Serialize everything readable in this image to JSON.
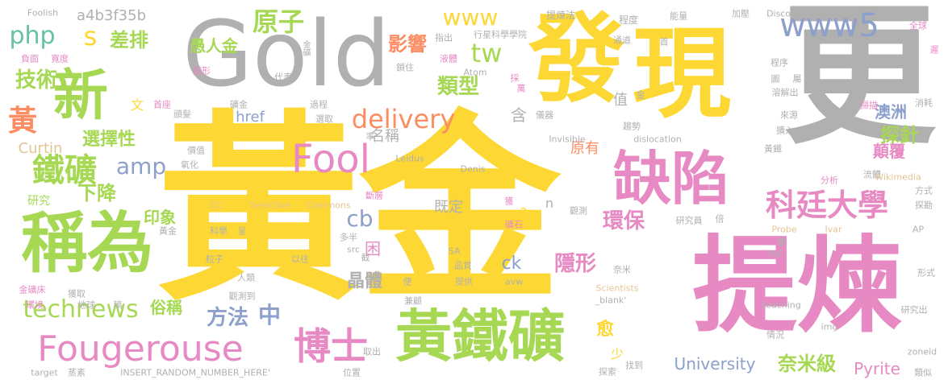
{
  "palette": {
    "yellow": "#fdd835",
    "gray": "#b0b0b0",
    "pink": "#e78ac3",
    "green": "#a6d854",
    "blue": "#8da0cb",
    "orange": "#fc8d62",
    "teal": "#66c2a5",
    "tan": "#e5c494"
  },
  "words": [
    {
      "id": "huangjin",
      "text": "黃金",
      "color": "#fdd835"
    },
    {
      "id": "tilian",
      "text": "提煉",
      "color": "#e78ac3"
    },
    {
      "id": "gold",
      "text": "Gold",
      "color": "#b0b0b0"
    },
    {
      "id": "fa",
      "text": "發",
      "color": "#fdd835"
    },
    {
      "id": "xian",
      "text": "現",
      "color": "#fdd835"
    },
    {
      "id": "geng",
      "text": "更",
      "color": "#b0b0b0"
    },
    {
      "id": "chengwei",
      "text": "稱為",
      "color": "#a6d854"
    },
    {
      "id": "huangtiekuang",
      "text": "黃鐵礦",
      "color": "#a6d854"
    },
    {
      "id": "quexian",
      "text": "缺陷",
      "color": "#e78ac3"
    },
    {
      "id": "fougerouse",
      "text": "Fougerouse",
      "color": "#e78ac3"
    },
    {
      "id": "xin",
      "text": "新",
      "color": "#a6d854"
    },
    {
      "id": "kedingdaxue",
      "text": "科廷大學",
      "color": "#e78ac3"
    },
    {
      "id": "boshi",
      "text": "博士",
      "color": "#e78ac3"
    },
    {
      "id": "tiekuang",
      "text": "鐵礦",
      "color": "#a6d854"
    },
    {
      "id": "fool",
      "text": "Fool",
      "color": "#e78ac3"
    },
    {
      "id": "www5",
      "text": "www5",
      "color": "#8da0cb"
    },
    {
      "id": "delivery",
      "text": "delivery",
      "color": "#fc8d62"
    },
    {
      "id": "technews",
      "text": "technews",
      "color": "#a6d854"
    },
    {
      "id": "yuanzi",
      "text": "原子",
      "color": "#a6d854"
    },
    {
      "id": "huang",
      "text": "黃",
      "color": "#fc8d62"
    },
    {
      "id": "jishu",
      "text": "技術",
      "color": "#a6d854"
    },
    {
      "id": "php",
      "text": "php",
      "color": "#66c2a5"
    },
    {
      "id": "s",
      "text": "s",
      "color": "#fdd835"
    },
    {
      "id": "chapai",
      "text": "差排",
      "color": "#a6d854"
    },
    {
      "id": "tw",
      "text": "tw",
      "color": "#a6d854"
    },
    {
      "id": "leixing",
      "text": "類型",
      "color": "#a6d854"
    },
    {
      "id": "yingxiang",
      "text": "影響",
      "color": "#fc8d62"
    },
    {
      "id": "www",
      "text": "www",
      "color": "#fdd835"
    },
    {
      "id": "amp",
      "text": "amp",
      "color": "#8da0cb"
    },
    {
      "id": "xiajiang",
      "text": "下降",
      "color": "#a6d854"
    },
    {
      "id": "xuanzexing",
      "text": "選擇性",
      "color": "#a6d854"
    },
    {
      "id": "tanzhen",
      "text": "探針",
      "color": "#a6d854"
    },
    {
      "id": "huanbao",
      "text": "環保",
      "color": "#e78ac3"
    },
    {
      "id": "yinxing",
      "text": "隱形",
      "color": "#e78ac3"
    },
    {
      "id": "jingti",
      "text": "晶體",
      "color": "#b0b0b0"
    },
    {
      "id": "cb",
      "text": "cb",
      "color": "#8da0cb"
    },
    {
      "id": "fangfa",
      "text": "方法",
      "color": "#8da0cb"
    },
    {
      "id": "zhong",
      "text": "中",
      "color": "#8da0cb"
    },
    {
      "id": "nami",
      "text": "奈米級",
      "color": "#a6d854"
    },
    {
      "id": "university",
      "text": "University",
      "color": "#8da0cb"
    },
    {
      "id": "pyrite",
      "text": "Pyrite",
      "color": "#e78ac3"
    },
    {
      "id": "aozhou",
      "text": "澳洲",
      "color": "#8da0cb"
    },
    {
      "id": "dianfu",
      "text": "顛覆",
      "color": "#e78ac3"
    },
    {
      "id": "yurenjin",
      "text": "愚人金",
      "color": "#a6d854"
    },
    {
      "id": "href",
      "text": "href",
      "color": "#8da0cb"
    },
    {
      "id": "curtin",
      "text": "Curtin",
      "color": "#e5c494"
    },
    {
      "id": "yinxiang",
      "text": "印象",
      "color": "#a6d854"
    },
    {
      "id": "suchen",
      "text": "俗稱",
      "color": "#a6d854"
    },
    {
      "id": "yu",
      "text": "愈",
      "color": "#fdd835"
    },
    {
      "id": "mingcheng",
      "text": "名稱",
      "color": "#b0b0b0"
    },
    {
      "id": "jiding",
      "text": "既定",
      "color": "#b0b0b0"
    },
    {
      "id": "ck",
      "text": "ck",
      "color": "#8da0cb"
    },
    {
      "id": "kun",
      "text": "困",
      "color": "#e78ac3"
    },
    {
      "id": "han",
      "text": "含",
      "color": "#b0b0b0"
    },
    {
      "id": "zhi",
      "text": "值",
      "color": "#b0b0b0"
    },
    {
      "id": "yuanyou",
      "text": "原有",
      "color": "#fc8d62"
    },
    {
      "id": "yanjiu",
      "text": "研究",
      "color": "#a6d854"
    },
    {
      "id": "a",
      "text": "a",
      "color": "#fdd835"
    },
    {
      "id": "n",
      "text": "n",
      "color": "#b0b0b0"
    },
    {
      "id": "wen",
      "text": "文",
      "color": "#fdd835"
    },
    {
      "id": "shao",
      "text": "少",
      "color": "#fdd835"
    },
    {
      "id": "hash",
      "text": "a4b3f35b",
      "color": "#b0b0b0"
    },
    {
      "id": "foolish",
      "text": "Foolish",
      "color": "#b0b0b0"
    },
    {
      "id": "tilianfa",
      "text": "提煉法",
      "color": "#b0b0b0"
    },
    {
      "id": "chengdu",
      "text": "程度",
      "color": "#b0b0b0"
    },
    {
      "id": "nengliang",
      "text": "能量",
      "color": "#b0b0b0"
    },
    {
      "id": "jiaya",
      "text": "加壓",
      "color": "#b0b0b0"
    },
    {
      "id": "discover",
      "text": "Discover",
      "color": "#b0b0b0"
    },
    {
      "id": "quanqiu",
      "text": "全球",
      "color": "#e78ac3"
    },
    {
      "id": "chi",
      "text": "遲",
      "color": "#e78ac3"
    },
    {
      "id": "jinkuang",
      "text": "金礦",
      "color": "#b0b0b0"
    },
    {
      "id": "zhichu",
      "text": "指出",
      "color": "#b0b0b0"
    },
    {
      "id": "xingxing",
      "text": "行星科學學院",
      "color": "#b0b0b0"
    },
    {
      "id": "tongdao",
      "text": "通道",
      "color": "#b0b0b0"
    },
    {
      "id": "shou",
      "text": "首",
      "color": "#b0b0b0"
    },
    {
      "id": "chengxu",
      "text": "程序",
      "color": "#b0b0b0"
    },
    {
      "id": "rongjiechu",
      "text": "溶解出",
      "color": "#b0b0b0"
    },
    {
      "id": "fumian",
      "text": "負面",
      "color": "#e78ac3"
    },
    {
      "id": "kuandu",
      "text": "寬度",
      "color": "#e78ac3"
    },
    {
      "id": "suozhu",
      "text": "鎖住",
      "color": "#b0b0b0"
    },
    {
      "id": "yeti",
      "text": "液體",
      "color": "#e78ac3"
    },
    {
      "id": "atom",
      "text": "Atom",
      "color": "#b0b0b0"
    },
    {
      "id": "bianxing",
      "text": "變形",
      "color": "#e78ac3"
    },
    {
      "id": "daibiao",
      "text": "代表",
      "color": "#b0b0b0"
    },
    {
      "id": "cai",
      "text": "採",
      "color": "#e78ac3"
    },
    {
      "id": "wan",
      "text": "萬",
      "color": "#e78ac3"
    },
    {
      "id": "tu",
      "text": "圖",
      "color": "#b0b0b0"
    },
    {
      "id": "shu",
      "text": "屬",
      "color": "#b0b0b0"
    },
    {
      "id": "saomiao",
      "text": "掃描",
      "color": "#e78ac3"
    },
    {
      "id": "xiaohao",
      "text": "消耗",
      "color": "#b0b0b0"
    },
    {
      "id": "shouchang",
      "text": "首座",
      "color": "#e78ac3"
    },
    {
      "id": "toufa",
      "text": "頭髮",
      "color": "#b0b0b0"
    },
    {
      "id": "guojin",
      "text": "礦金",
      "color": "#b0b0b0"
    },
    {
      "id": "guocheng",
      "text": "過程",
      "color": "#b0b0b0"
    },
    {
      "id": "yiqi",
      "text": "儀器",
      "color": "#b0b0b0"
    },
    {
      "id": "jin",
      "text": "金",
      "color": "#b0b0b0"
    },
    {
      "id": "laiyuan",
      "text": "來源",
      "color": "#b0b0b0"
    },
    {
      "id": "qushi",
      "text": "趨勢",
      "color": "#b0b0b0"
    },
    {
      "id": "kuoru",
      "text": "擴入",
      "color": "#b0b0b0"
    },
    {
      "id": "xuanqu",
      "text": "選取",
      "color": "#b0b0b0"
    },
    {
      "id": "lv",
      "text": "率",
      "color": "#b0b0b0"
    },
    {
      "id": "invisible",
      "text": "Invisible",
      "color": "#b0b0b0"
    },
    {
      "id": "dislocation",
      "text": "dislocation",
      "color": "#b0b0b0"
    },
    {
      "id": "huangtie",
      "text": "黃鐵",
      "color": "#b0b0b0"
    },
    {
      "id": "jiazhi",
      "text": "價值",
      "color": "#b0b0b0"
    },
    {
      "id": "yanghua",
      "text": "氧化",
      "color": "#b0b0b0"
    },
    {
      "id": "leidus",
      "text": "Leidus",
      "color": "#b0b0b0"
    },
    {
      "id": "denis",
      "text": "Denis",
      "color": "#b0b0b0"
    },
    {
      "id": "fenxi",
      "text": "分析",
      "color": "#e78ac3"
    },
    {
      "id": "liuti",
      "text": "流體",
      "color": "#b0b0b0"
    },
    {
      "id": "wikimedia",
      "text": "Wikimedia",
      "color": "#e5c494"
    },
    {
      "id": "fangshi",
      "text": "方式",
      "color": "#b0b0b0"
    },
    {
      "id": "tansuo",
      "text": "探勘",
      "color": "#b0b0b0"
    },
    {
      "id": "duanceng",
      "text": "斷層",
      "color": "#e78ac3"
    },
    {
      "id": "huo",
      "text": "獲",
      "color": "#e78ac3"
    },
    {
      "id": "cc",
      "text": "CC",
      "color": "#e5c494"
    },
    {
      "id": "selective",
      "text": "Selective",
      "color": "#e5c494"
    },
    {
      "id": "commons",
      "text": "Commons",
      "color": "#e5c494"
    },
    {
      "id": "guance",
      "text": "觀測",
      "color": "#b0b0b0"
    },
    {
      "id": "kuangshi",
      "text": "礦石",
      "color": "#e78ac3"
    },
    {
      "id": "yanjiuyuan",
      "text": "研究員",
      "color": "#b0b0b0"
    },
    {
      "id": "bei",
      "text": "倍",
      "color": "#b0b0b0"
    },
    {
      "id": "probe",
      "text": "Probe",
      "color": "#e5c494"
    },
    {
      "id": "ivar",
      "text": "Ivar",
      "color": "#e5c494"
    },
    {
      "id": "ap",
      "text": "AP",
      "color": "#b0b0b0"
    },
    {
      "id": "huangjin2",
      "text": "黃金",
      "color": "#b0b0b0"
    },
    {
      "id": "kexue",
      "text": "科學",
      "color": "#b0b0b0"
    },
    {
      "id": "cheng",
      "text": "呈",
      "color": "#b0b0b0"
    },
    {
      "id": "duoban",
      "text": "多半",
      "color": "#b0b0b0"
    },
    {
      "id": "src",
      "text": "src",
      "color": "#b0b0b0"
    },
    {
      "id": "zheng",
      "text": "整",
      "color": "#b0b0b0"
    },
    {
      "id": "ins",
      "text": "INS",
      "color": "#b0b0b0"
    },
    {
      "id": "lizi",
      "text": "粒子",
      "color": "#b0b0b0"
    },
    {
      "id": "yiwang",
      "text": "以往",
      "color": "#b0b0b0"
    },
    {
      "id": "jie",
      "text": "截",
      "color": "#b0b0b0"
    },
    {
      "id": "sa",
      "text": "SA",
      "color": "#b0b0b0"
    },
    {
      "id": "pinzhi",
      "text": "品質",
      "color": "#b0b0b0"
    },
    {
      "id": "naimi",
      "text": "奈米",
      "color": "#b0b0b0"
    },
    {
      "id": "xingshi",
      "text": "形式",
      "color": "#b0b0b0"
    },
    {
      "id": "jinkuangchuang",
      "text": "金礦床",
      "color": "#e78ac3"
    },
    {
      "id": "huoqu",
      "text": "獲取",
      "color": "#b0b0b0"
    },
    {
      "id": "renlei",
      "text": "人類",
      "color": "#b0b0b0"
    },
    {
      "id": "bian",
      "text": "便",
      "color": "#b0b0b0"
    },
    {
      "id": "tigong",
      "text": "提供",
      "color": "#b0b0b0"
    },
    {
      "id": "avw",
      "text": "avw",
      "color": "#b0b0b0"
    },
    {
      "id": "scientists",
      "text": "Scientists",
      "color": "#e5c494"
    },
    {
      "id": "blank",
      "text": "_blank'",
      "color": "#b0b0b0"
    },
    {
      "id": "guancedao",
      "text": "觀測到",
      "color": "#b0b0b0"
    },
    {
      "id": "jiangu",
      "text": "兼顧",
      "color": "#b0b0b0"
    },
    {
      "id": "leaching",
      "text": "Leaching",
      "color": "#b0b0b0"
    },
    {
      "id": "yanjiuchu",
      "text": "研究出",
      "color": "#b0b0b0"
    },
    {
      "id": "huanjing",
      "text": "環境",
      "color": "#e78ac3"
    },
    {
      "id": "diqiu",
      "text": "地球",
      "color": "#b0b0b0"
    },
    {
      "id": "gao",
      "text": "稿",
      "color": "#b0b0b0"
    },
    {
      "id": "qingkuang",
      "text": "情況",
      "color": "#b0b0b0"
    },
    {
      "id": "img",
      "text": "img",
      "color": "#b0b0b0"
    },
    {
      "id": "target",
      "text": "target",
      "color": "#b0b0b0"
    },
    {
      "id": "zhengsu",
      "text": "蒸素",
      "color": "#b0b0b0"
    },
    {
      "id": "insert",
      "text": "INSERT_RANDOM_NUMBER_HERE'",
      "color": "#b0b0b0"
    },
    {
      "id": "quchu",
      "text": "取出",
      "color": "#b0b0b0"
    },
    {
      "id": "weizhi",
      "text": "位置",
      "color": "#b0b0b0"
    },
    {
      "id": "tansuo2",
      "text": "探索",
      "color": "#b0b0b0"
    },
    {
      "id": "zhaodao",
      "text": "找到",
      "color": "#b0b0b0"
    },
    {
      "id": "zoneid",
      "text": "zoneid",
      "color": "#b0b0b0"
    },
    {
      "id": "leisi",
      "text": "類似",
      "color": "#b0b0b0"
    }
  ]
}
